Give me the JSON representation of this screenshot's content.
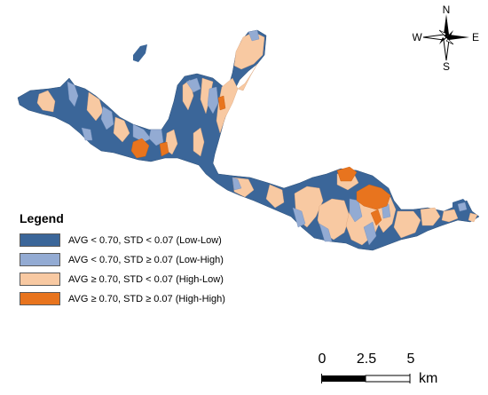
{
  "legend": {
    "title": "Legend",
    "items": [
      {
        "label": "AVG < 0.70, STD < 0.07 (Low-Low)",
        "color": "#3b6699"
      },
      {
        "label": "AVG < 0.70, STD ≥ 0.07 (Low-High)",
        "color": "#93abd3"
      },
      {
        "label": "AVG ≥ 0.70, STD < 0.07 (High-Low)",
        "color": "#f8c9a2"
      },
      {
        "label": "AVG ≥ 0.70, STD ≥ 0.07 (High-High)",
        "color": "#e8741e"
      }
    ]
  },
  "north_arrow": {
    "n": "N",
    "s": "S",
    "e": "E",
    "w": "W"
  },
  "scale_bar": {
    "ticks": [
      "0",
      "2.5",
      "5"
    ],
    "unit": "km"
  }
}
